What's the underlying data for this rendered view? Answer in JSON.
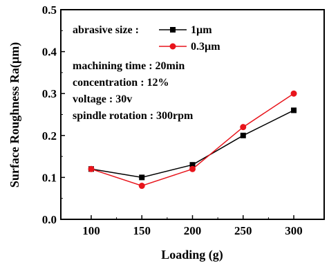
{
  "chart_data": {
    "type": "line",
    "title": "",
    "xlabel": "Loading (g)",
    "ylabel": "Surface Roughness Ra(µm)",
    "x": [
      100,
      150,
      200,
      250,
      300
    ],
    "xlim": [
      70,
      330
    ],
    "ylim": [
      0.0,
      0.5
    ],
    "xticks": [
      "100",
      "150",
      "200",
      "250",
      "300"
    ],
    "yticks": [
      "0.0",
      "0.1",
      "0.2",
      "0.3",
      "0.4",
      "0.5"
    ],
    "grid": false,
    "legend_title": "abrasive size :",
    "series": [
      {
        "name": "1µm",
        "values": [
          0.12,
          0.1,
          0.13,
          0.2,
          0.26
        ],
        "color": "#000000",
        "marker": "square"
      },
      {
        "name": "0.3µm",
        "values": [
          0.12,
          0.08,
          0.12,
          0.22,
          0.3
        ],
        "color": "#e8141b",
        "marker": "circle"
      }
    ],
    "annotations": [
      "machining time : 20min",
      "concentration : 12%",
      "voltage : 30v",
      "spindle rotation : 300rpm"
    ]
  }
}
